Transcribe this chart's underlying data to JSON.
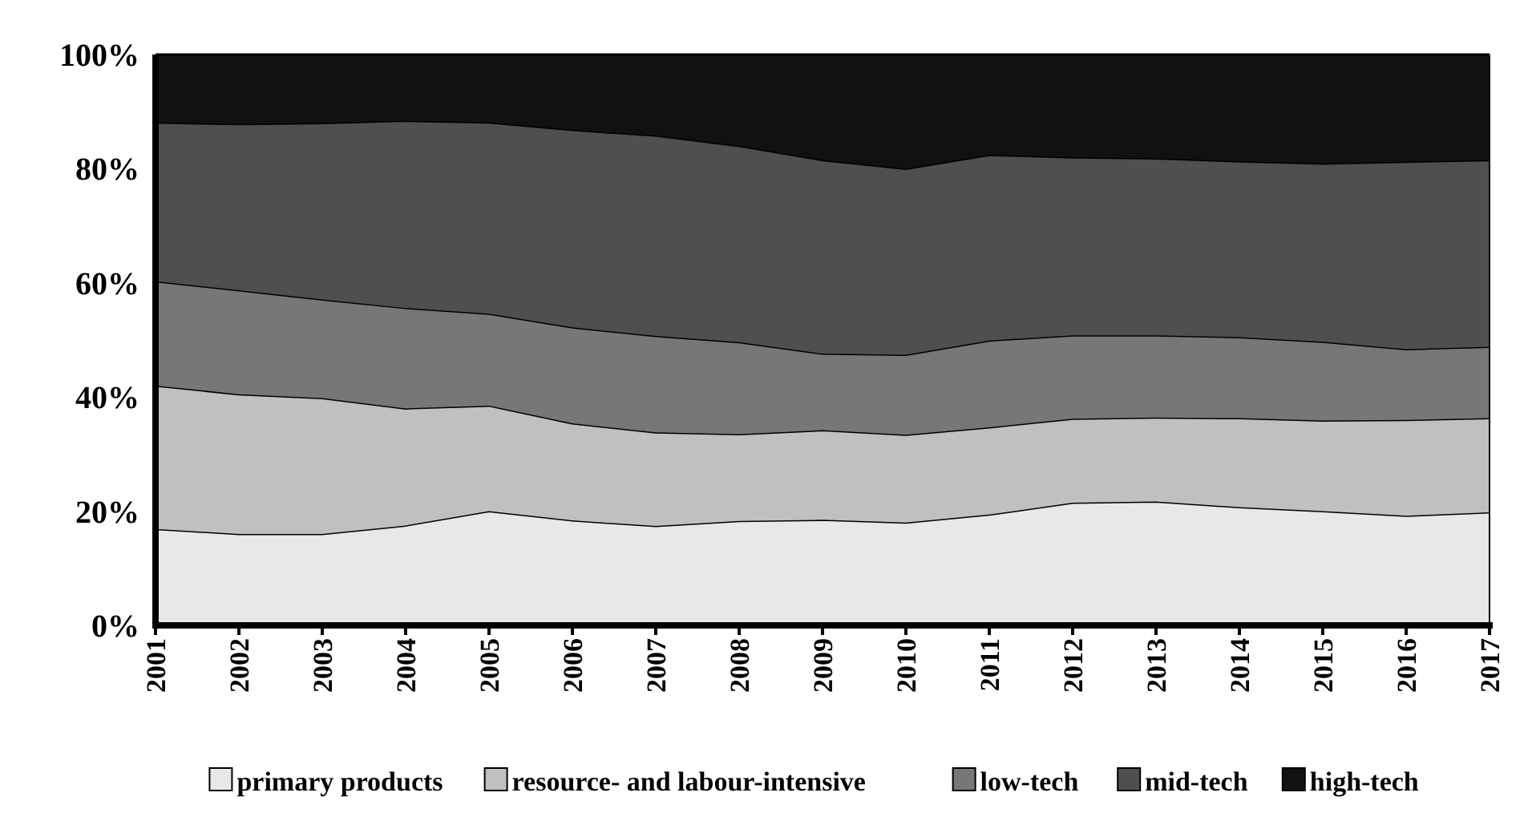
{
  "chart_data": {
    "type": "area",
    "stacked": true,
    "categories": [
      "2001",
      "2002",
      "2003",
      "2004",
      "2005",
      "2006",
      "2007",
      "2008",
      "2009",
      "2010",
      "2011",
      "2012",
      "2013",
      "2014",
      "2015",
      "2016",
      "2017"
    ],
    "series": [
      {
        "name": "primary products",
        "color": "#e8e8e8",
        "values": [
          16.9,
          16,
          16,
          17.5,
          20,
          18.4,
          17.4,
          18.3,
          18.5,
          18,
          19.4,
          21.5,
          21.7,
          20.7,
          20,
          19.2,
          19.8
        ]
      },
      {
        "name": "resource- and labour-intensive",
        "color": "#c0c0c0",
        "values": [
          25.1,
          24.5,
          23.8,
          20.5,
          18.5,
          17,
          16.4,
          15.2,
          15.7,
          15.4,
          15.3,
          14.7,
          14.7,
          15.6,
          15.9,
          16.8,
          16.5
        ]
      },
      {
        "name": "low-tech",
        "color": "#777777",
        "values": [
          18.3,
          18.2,
          17.3,
          17.6,
          16.1,
          16.8,
          16.9,
          16.1,
          13.4,
          14,
          15.2,
          14.6,
          14.4,
          14.2,
          13.8,
          12.4,
          12.5
        ]
      },
      {
        "name": "mid-tech",
        "color": "#4f4f4f",
        "values": [
          27.8,
          29.1,
          30.9,
          32.8,
          33.5,
          34.6,
          35.1,
          34.4,
          33.9,
          32.6,
          32.5,
          31.2,
          31,
          30.8,
          31.2,
          32.8,
          32.7
        ]
      },
      {
        "name": "high-tech",
        "color": "#111111",
        "values": [
          11.9,
          12.2,
          12,
          11.6,
          11.9,
          13.2,
          14.2,
          16,
          18.5,
          20,
          17.6,
          18,
          18.2,
          18.7,
          19.1,
          18.8,
          18.5
        ]
      }
    ],
    "ylim": [
      0,
      100
    ],
    "yticks": [
      {
        "value": 0,
        "label": "0%"
      },
      {
        "value": 20,
        "label": "20%"
      },
      {
        "value": 40,
        "label": "40%"
      },
      {
        "value": 60,
        "label": "60%"
      },
      {
        "value": 80,
        "label": "80%"
      },
      {
        "value": 100,
        "label": "100%"
      }
    ],
    "legend": "bottom"
  }
}
